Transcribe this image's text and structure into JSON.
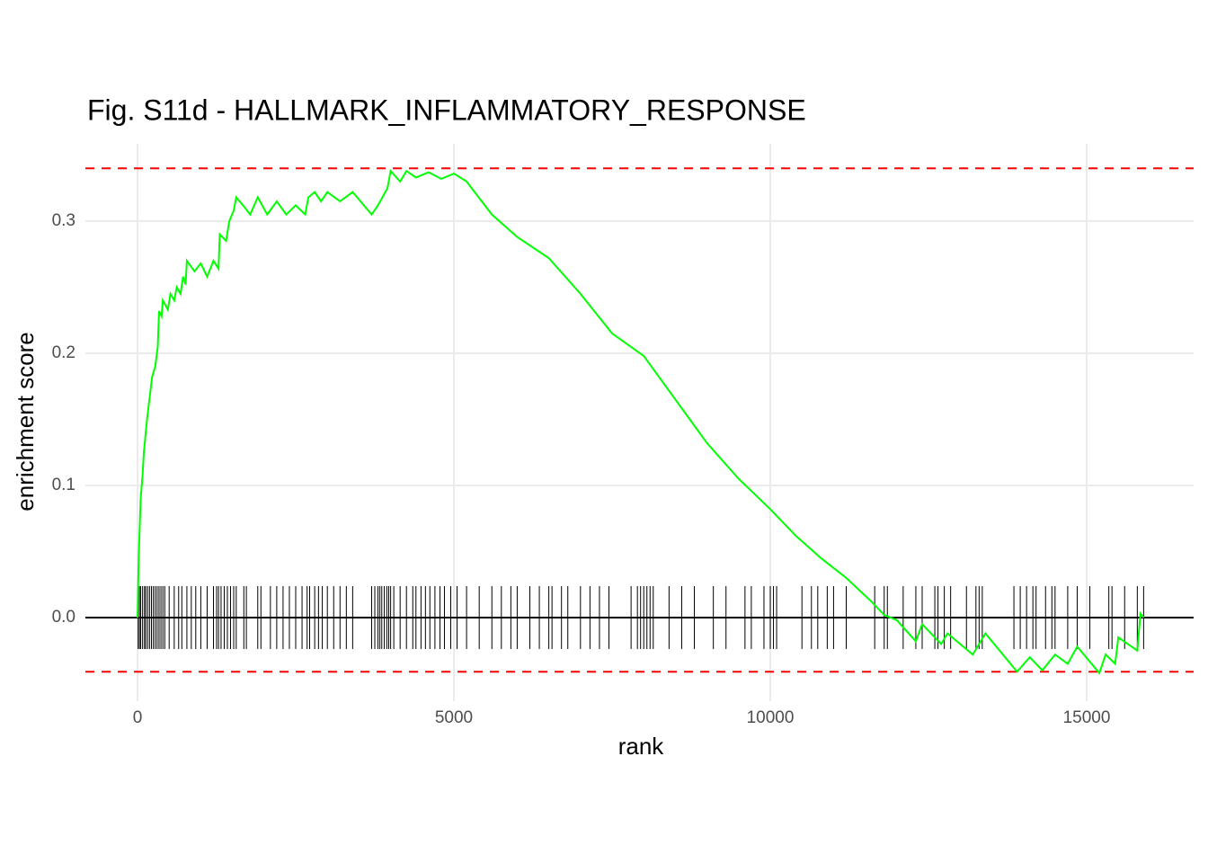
{
  "chart_data": {
    "type": "enrichment",
    "title": "Fig. S11d - HALLMARK_INFLAMMATORY_RESPONSE",
    "x_label": "rank",
    "y_label": "enrichment score",
    "xlim": [
      -824,
      16690
    ],
    "ylim": [
      -0.0633,
      0.3585
    ],
    "xticks": [
      0,
      5000,
      10000,
      15000
    ],
    "yticks": [
      {
        "value": 0,
        "label": "0.0"
      },
      {
        "value": 0.1,
        "label": "0.1"
      },
      {
        "value": 0.2,
        "label": "0.2"
      },
      {
        "value": 0.3,
        "label": "0.3"
      }
    ],
    "grid": true,
    "reference_lines": [
      0.34,
      -0.041
    ],
    "reference_color": "#ff0000",
    "hits_color": "#000000",
    "hits": [
      10,
      30,
      50,
      80,
      110,
      130,
      160,
      190,
      220,
      250,
      280,
      310,
      340,
      370,
      400,
      430,
      500,
      580,
      650,
      700,
      780,
      850,
      920,
      1000,
      1100,
      1200,
      1250,
      1280,
      1320,
      1370,
      1420,
      1470,
      1520,
      1560,
      1680,
      1720,
      1900,
      1950,
      2100,
      2200,
      2300,
      2400,
      2500,
      2600,
      2680,
      2720,
      2800,
      2860,
      2920,
      3000,
      3100,
      3200,
      3300,
      3400,
      3700,
      3750,
      3800,
      3830,
      3860,
      3900,
      3940,
      3970,
      4000,
      4050,
      4150,
      4250,
      4350,
      4400,
      4480,
      4550,
      4620,
      4700,
      4780,
      4850,
      4950,
      5050,
      5200,
      5400,
      5600,
      5750,
      5900,
      6000,
      6200,
      6350,
      6500,
      6550,
      6700,
      6800,
      7000,
      7150,
      7300,
      7450,
      7800,
      7900,
      7950,
      8000,
      8050,
      8100,
      8150,
      8400,
      8600,
      8800,
      9100,
      9300,
      9600,
      9700,
      9900,
      10000,
      10050,
      10100,
      10500,
      10650,
      10750,
      10900,
      11000,
      11200,
      11650,
      11800,
      11850,
      12100,
      12300,
      12400,
      12600,
      12650,
      12750,
      12850,
      13100,
      13250,
      13300,
      13350,
      13850,
      13950,
      14050,
      14150,
      14200,
      14350,
      14450,
      14500,
      14700,
      14850,
      15050,
      15350,
      15400,
      15600,
      15800,
      15900
    ],
    "series": [
      {
        "color": "#00ff00",
        "x": [
          0,
          20,
          50,
          80,
          100,
          150,
          200,
          230,
          280,
          320,
          340,
          380,
          400,
          480,
          520,
          580,
          620,
          680,
          720,
          760,
          780,
          900,
          1000,
          1100,
          1200,
          1280,
          1300,
          1400,
          1450,
          1520,
          1560,
          1700,
          1780,
          1900,
          2050,
          2200,
          2350,
          2500,
          2650,
          2700,
          2800,
          2900,
          3000,
          3200,
          3400,
          3700,
          3800,
          3950,
          4000,
          4150,
          4250,
          4400,
          4600,
          4800,
          5000,
          5200,
          5600,
          6000,
          6500,
          7000,
          7500,
          8000,
          8500,
          9000,
          9500,
          10000,
          10400,
          10800,
          11200,
          11600,
          11800,
          12000,
          12300,
          12400,
          12700,
          12800,
          13200,
          13400,
          13900,
          14100,
          14300,
          14500,
          14700,
          14850,
          15200,
          15300,
          15450,
          15500,
          15800,
          15850,
          15900
        ],
        "values": [
          0,
          0.048,
          0.09,
          0.108,
          0.125,
          0.15,
          0.17,
          0.182,
          0.19,
          0.205,
          0.232,
          0.228,
          0.24,
          0.233,
          0.245,
          0.24,
          0.25,
          0.245,
          0.258,
          0.252,
          0.27,
          0.262,
          0.268,
          0.258,
          0.27,
          0.264,
          0.29,
          0.285,
          0.3,
          0.308,
          0.318,
          0.31,
          0.305,
          0.318,
          0.305,
          0.315,
          0.305,
          0.312,
          0.305,
          0.318,
          0.322,
          0.315,
          0.322,
          0.315,
          0.322,
          0.305,
          0.312,
          0.325,
          0.338,
          0.33,
          0.338,
          0.333,
          0.337,
          0.332,
          0.336,
          0.33,
          0.305,
          0.288,
          0.272,
          0.245,
          0.215,
          0.198,
          0.165,
          0.132,
          0.105,
          0.082,
          0.062,
          0.045,
          0.03,
          0.012,
          0.002,
          -0.002,
          -0.018,
          -0.005,
          -0.02,
          -0.012,
          -0.028,
          -0.012,
          -0.041,
          -0.03,
          -0.04,
          -0.028,
          -0.035,
          -0.022,
          -0.042,
          -0.028,
          -0.035,
          -0.015,
          -0.025,
          0.003,
          0
        ]
      }
    ]
  }
}
